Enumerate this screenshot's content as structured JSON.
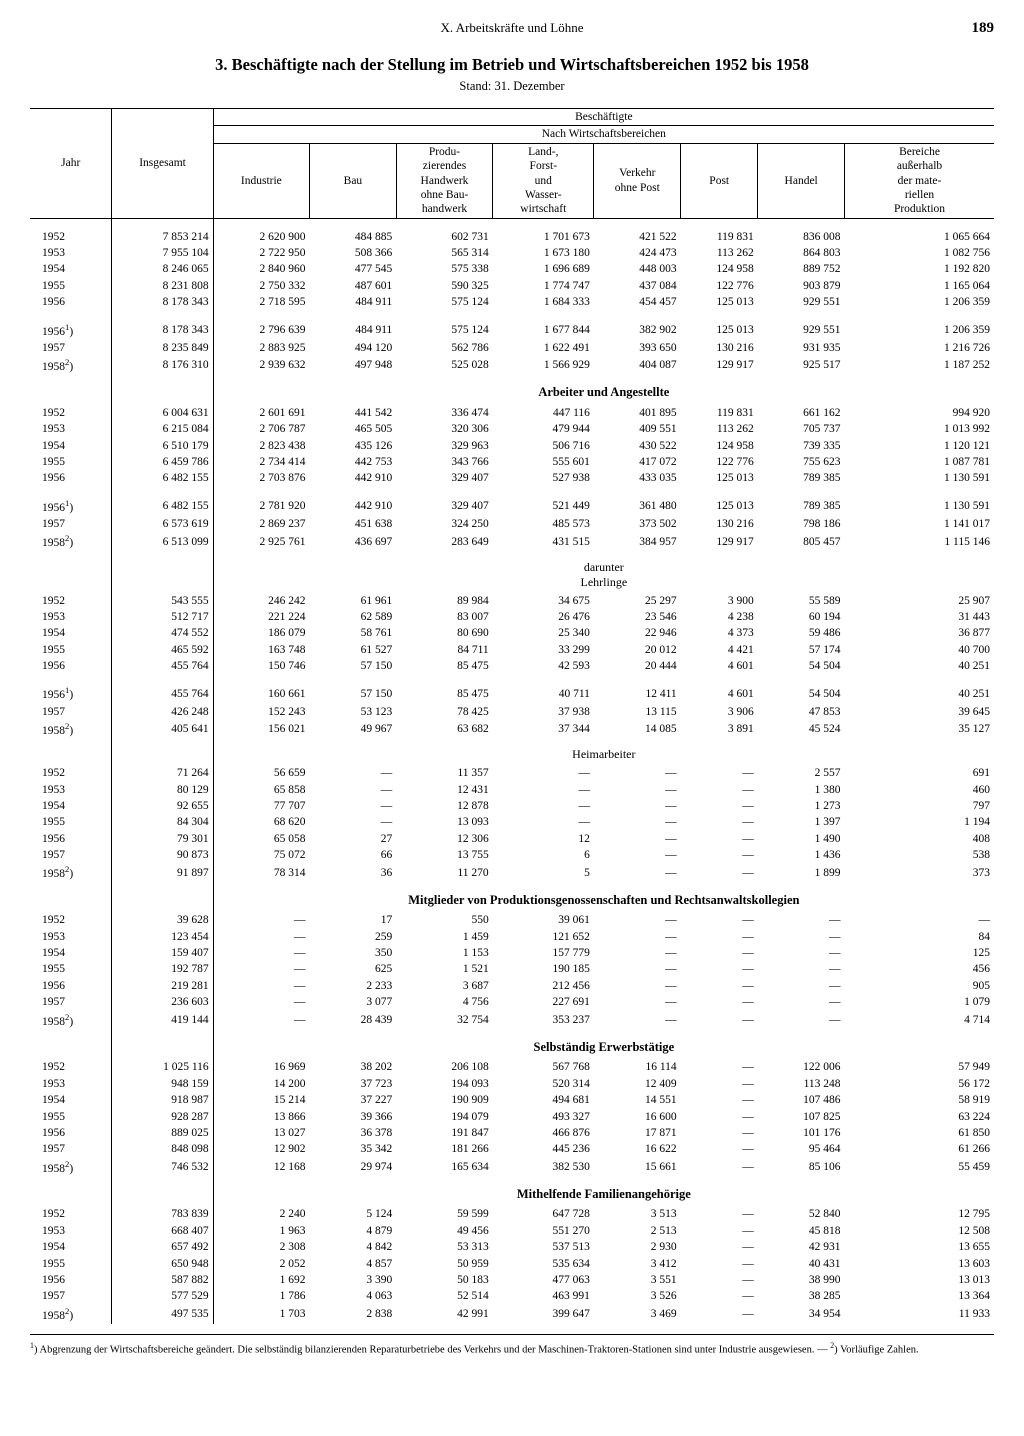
{
  "header": {
    "chapter": "X. Arbeitskräfte und Löhne",
    "page_number": "189"
  },
  "title": "3. Beschäftigte nach der Stellung im Betrieb und Wirtschaftsbereichen 1952 bis 1958",
  "subtitle": "Stand: 31. Dezember",
  "columns": {
    "year": "Jahr",
    "total": "Insgesamt",
    "group_header": "Beschäftigte",
    "sub_header": "Nach Wirtschaftsbereichen",
    "industrie": "Industrie",
    "bau": "Bau",
    "handwerk": "Produ-\nzierendes\nHandwerk\nohne Bau-\nhandwerk",
    "landforst": "Land-,\nForst-\nund\nWasser-\nwirtschaft",
    "verkehr": "Verkehr\nohne Post",
    "post": "Post",
    "handel": "Handel",
    "bereiche": "Bereiche\naußerhalb\nder mate-\nriellen\nProduktion"
  },
  "sections": [
    {
      "label": null,
      "blocks": [
        [
          {
            "year": "1952",
            "c": [
              "7 853 214",
              "2 620 900",
              "484 885",
              "602 731",
              "1 701 673",
              "421 522",
              "119 831",
              "836 008",
              "1 065 664"
            ]
          },
          {
            "year": "1953",
            "c": [
              "7 955 104",
              "2 722 950",
              "508 366",
              "565 314",
              "1 673 180",
              "424 473",
              "113 262",
              "864 803",
              "1 082 756"
            ]
          },
          {
            "year": "1954",
            "c": [
              "8 246 065",
              "2 840 960",
              "477 545",
              "575 338",
              "1 696 689",
              "448 003",
              "124 958",
              "889 752",
              "1 192 820"
            ]
          },
          {
            "year": "1955",
            "c": [
              "8 231 808",
              "2 750 332",
              "487 601",
              "590 325",
              "1 774 747",
              "437 084",
              "122 776",
              "903 879",
              "1 165 064"
            ]
          },
          {
            "year": "1956",
            "c": [
              "8 178 343",
              "2 718 595",
              "484 911",
              "575 124",
              "1 684 333",
              "454 457",
              "125 013",
              "929 551",
              "1 206 359"
            ]
          }
        ],
        [
          {
            "year": "1956¹)",
            "c": [
              "8 178 343",
              "2 796 639",
              "484 911",
              "575 124",
              "1 677 844",
              "382 902",
              "125 013",
              "929 551",
              "1 206 359"
            ]
          },
          {
            "year": "1957",
            "c": [
              "8 235 849",
              "2 883 925",
              "494 120",
              "562 786",
              "1 622 491",
              "393 650",
              "130 216",
              "931 935",
              "1 216 726"
            ]
          },
          {
            "year": "1958²)",
            "c": [
              "8 176 310",
              "2 939 632",
              "497 948",
              "525 028",
              "1 566 929",
              "404 087",
              "129 917",
              "925 517",
              "1 187 252"
            ]
          }
        ]
      ]
    },
    {
      "label": "Arbeiter und Angestellte",
      "blocks": [
        [
          {
            "year": "1952",
            "c": [
              "6 004 631",
              "2 601 691",
              "441 542",
              "336 474",
              "447 116",
              "401 895",
              "119 831",
              "661 162",
              "994 920"
            ]
          },
          {
            "year": "1953",
            "c": [
              "6 215 084",
              "2 706 787",
              "465 505",
              "320 306",
              "479 944",
              "409 551",
              "113 262",
              "705 737",
              "1 013 992"
            ]
          },
          {
            "year": "1954",
            "c": [
              "6 510 179",
              "2 823 438",
              "435 126",
              "329 963",
              "506 716",
              "430 522",
              "124 958",
              "739 335",
              "1 120 121"
            ]
          },
          {
            "year": "1955",
            "c": [
              "6 459 786",
              "2 734 414",
              "442 753",
              "343 766",
              "555 601",
              "417 072",
              "122 776",
              "755 623",
              "1 087 781"
            ]
          },
          {
            "year": "1956",
            "c": [
              "6 482 155",
              "2 703 876",
              "442 910",
              "329 407",
              "527 938",
              "433 035",
              "125 013",
              "789 385",
              "1 130 591"
            ]
          }
        ],
        [
          {
            "year": "1956¹)",
            "c": [
              "6 482 155",
              "2 781 920",
              "442 910",
              "329 407",
              "521 449",
              "361 480",
              "125 013",
              "789 385",
              "1 130 591"
            ]
          },
          {
            "year": "1957",
            "c": [
              "6 573 619",
              "2 869 237",
              "451 638",
              "324 250",
              "485 573",
              "373 502",
              "130 216",
              "798 186",
              "1 141 017"
            ]
          },
          {
            "year": "1958²)",
            "c": [
              "6 513 099",
              "2 925 761",
              "436 697",
              "283 649",
              "431 515",
              "384 957",
              "129 917",
              "805 457",
              "1 115 146"
            ]
          }
        ]
      ]
    },
    {
      "label": "darunter\nLehrlinge",
      "label_weight": "normal",
      "blocks": [
        [
          {
            "year": "1952",
            "c": [
              "543 555",
              "246 242",
              "61 961",
              "89 984",
              "34 675",
              "25 297",
              "3 900",
              "55 589",
              "25 907"
            ]
          },
          {
            "year": "1953",
            "c": [
              "512 717",
              "221 224",
              "62 589",
              "83 007",
              "26 476",
              "23 546",
              "4 238",
              "60 194",
              "31 443"
            ]
          },
          {
            "year": "1954",
            "c": [
              "474 552",
              "186 079",
              "58 761",
              "80 690",
              "25 340",
              "22 946",
              "4 373",
              "59 486",
              "36 877"
            ]
          },
          {
            "year": "1955",
            "c": [
              "465 592",
              "163 748",
              "61 527",
              "84 711",
              "33 299",
              "20 012",
              "4 421",
              "57 174",
              "40 700"
            ]
          },
          {
            "year": "1956",
            "c": [
              "455 764",
              "150 746",
              "57 150",
              "85 475",
              "42 593",
              "20 444",
              "4 601",
              "54 504",
              "40 251"
            ]
          }
        ],
        [
          {
            "year": "1956¹)",
            "c": [
              "455 764",
              "160 661",
              "57 150",
              "85 475",
              "40 711",
              "12 411",
              "4 601",
              "54 504",
              "40 251"
            ]
          },
          {
            "year": "1957",
            "c": [
              "426 248",
              "152 243",
              "53 123",
              "78 425",
              "37 938",
              "13 115",
              "3 906",
              "47 853",
              "39 645"
            ]
          },
          {
            "year": "1958²)",
            "c": [
              "405 641",
              "156 021",
              "49 967",
              "63 682",
              "37 344",
              "14 085",
              "3 891",
              "45 524",
              "35 127"
            ]
          }
        ]
      ]
    },
    {
      "label": "Heimarbeiter",
      "label_weight": "normal",
      "blocks": [
        [
          {
            "year": "1952",
            "c": [
              "71 264",
              "56 659",
              "—",
              "11 357",
              "—",
              "—",
              "—",
              "2 557",
              "691"
            ]
          },
          {
            "year": "1953",
            "c": [
              "80 129",
              "65 858",
              "—",
              "12 431",
              "—",
              "—",
              "—",
              "1 380",
              "460"
            ]
          },
          {
            "year": "1954",
            "c": [
              "92 655",
              "77 707",
              "—",
              "12 878",
              "—",
              "—",
              "—",
              "1 273",
              "797"
            ]
          },
          {
            "year": "1955",
            "c": [
              "84 304",
              "68 620",
              "—",
              "13 093",
              "—",
              "—",
              "—",
              "1 397",
              "1 194"
            ]
          },
          {
            "year": "1956",
            "c": [
              "79 301",
              "65 058",
              "27",
              "12 306",
              "12",
              "—",
              "—",
              "1 490",
              "408"
            ]
          },
          {
            "year": "1957",
            "c": [
              "90 873",
              "75 072",
              "66",
              "13 755",
              "6",
              "—",
              "—",
              "1 436",
              "538"
            ]
          },
          {
            "year": "1958²)",
            "c": [
              "91 897",
              "78 314",
              "36",
              "11 270",
              "5",
              "—",
              "—",
              "1 899",
              "373"
            ]
          }
        ]
      ]
    },
    {
      "label": "Mitglieder von Produktionsgenossenschaften und Rechtsanwaltskollegien",
      "blocks": [
        [
          {
            "year": "1952",
            "c": [
              "39 628",
              "—",
              "17",
              "550",
              "39 061",
              "—",
              "—",
              "—",
              "—"
            ]
          },
          {
            "year": "1953",
            "c": [
              "123 454",
              "—",
              "259",
              "1 459",
              "121 652",
              "—",
              "—",
              "—",
              "84"
            ]
          },
          {
            "year": "1954",
            "c": [
              "159 407",
              "—",
              "350",
              "1 153",
              "157 779",
              "—",
              "—",
              "—",
              "125"
            ]
          },
          {
            "year": "1955",
            "c": [
              "192 787",
              "—",
              "625",
              "1 521",
              "190 185",
              "—",
              "—",
              "—",
              "456"
            ]
          },
          {
            "year": "1956",
            "c": [
              "219 281",
              "—",
              "2 233",
              "3 687",
              "212 456",
              "—",
              "—",
              "—",
              "905"
            ]
          },
          {
            "year": "1957",
            "c": [
              "236 603",
              "—",
              "3 077",
              "4 756",
              "227 691",
              "—",
              "—",
              "—",
              "1 079"
            ]
          },
          {
            "year": "1958²)",
            "c": [
              "419 144",
              "—",
              "28 439",
              "32 754",
              "353 237",
              "—",
              "—",
              "—",
              "4 714"
            ]
          }
        ]
      ]
    },
    {
      "label": "Selbständig Erwerbstätige",
      "blocks": [
        [
          {
            "year": "1952",
            "c": [
              "1 025 116",
              "16 969",
              "38 202",
              "206 108",
              "567 768",
              "16 114",
              "—",
              "122 006",
              "57 949"
            ]
          },
          {
            "year": "1953",
            "c": [
              "948 159",
              "14 200",
              "37 723",
              "194 093",
              "520 314",
              "12 409",
              "—",
              "113 248",
              "56 172"
            ]
          },
          {
            "year": "1954",
            "c": [
              "918 987",
              "15 214",
              "37 227",
              "190 909",
              "494 681",
              "14 551",
              "—",
              "107 486",
              "58 919"
            ]
          },
          {
            "year": "1955",
            "c": [
              "928 287",
              "13 866",
              "39 366",
              "194 079",
              "493 327",
              "16 600",
              "—",
              "107 825",
              "63 224"
            ]
          },
          {
            "year": "1956",
            "c": [
              "889 025",
              "13 027",
              "36 378",
              "191 847",
              "466 876",
              "17 871",
              "—",
              "101 176",
              "61 850"
            ]
          },
          {
            "year": "1957",
            "c": [
              "848 098",
              "12 902",
              "35 342",
              "181 266",
              "445 236",
              "16 622",
              "—",
              "95 464",
              "61 266"
            ]
          },
          {
            "year": "1958²)",
            "c": [
              "746 532",
              "12 168",
              "29 974",
              "165 634",
              "382 530",
              "15 661",
              "—",
              "85 106",
              "55 459"
            ]
          }
        ]
      ]
    },
    {
      "label": "Mithelfende Familienangehörige",
      "blocks": [
        [
          {
            "year": "1952",
            "c": [
              "783 839",
              "2 240",
              "5 124",
              "59 599",
              "647 728",
              "3 513",
              "—",
              "52 840",
              "12 795"
            ]
          },
          {
            "year": "1953",
            "c": [
              "668 407",
              "1 963",
              "4 879",
              "49 456",
              "551 270",
              "2 513",
              "—",
              "45 818",
              "12 508"
            ]
          },
          {
            "year": "1954",
            "c": [
              "657 492",
              "2 308",
              "4 842",
              "53 313",
              "537 513",
              "2 930",
              "—",
              "42 931",
              "13 655"
            ]
          },
          {
            "year": "1955",
            "c": [
              "650 948",
              "2 052",
              "4 857",
              "50 959",
              "535 634",
              "3 412",
              "—",
              "40 431",
              "13 603"
            ]
          },
          {
            "year": "1956",
            "c": [
              "587 882",
              "1 692",
              "3 390",
              "50 183",
              "477 063",
              "3 551",
              "—",
              "38 990",
              "13 013"
            ]
          },
          {
            "year": "1957",
            "c": [
              "577 529",
              "1 786",
              "4 063",
              "52 514",
              "463 991",
              "3 526",
              "—",
              "38 285",
              "13 364"
            ]
          },
          {
            "year": "1958²)",
            "c": [
              "497 535",
              "1 703",
              "2 838",
              "42 991",
              "399 647",
              "3 469",
              "—",
              "34 954",
              "11 933"
            ]
          }
        ]
      ]
    }
  ],
  "footnotes": "¹) Abgrenzung der Wirtschaftsbereiche geändert. Die selbständig bilanzierenden Reparaturbetriebe des Verkehrs und der Maschinen-Traktoren-Stationen sind unter Industrie ausgewiesen. — ²) Vorläufige Zahlen.",
  "style": {
    "page_bg": "#ffffff",
    "text_color": "#000000",
    "font_family": "Times New Roman",
    "base_fontsize_pt": 9,
    "title_fontsize_pt": 12.5,
    "col_widths_pct": [
      8.5,
      10.5,
      10,
      9,
      10,
      10.5,
      9,
      8,
      9,
      15.5
    ]
  }
}
